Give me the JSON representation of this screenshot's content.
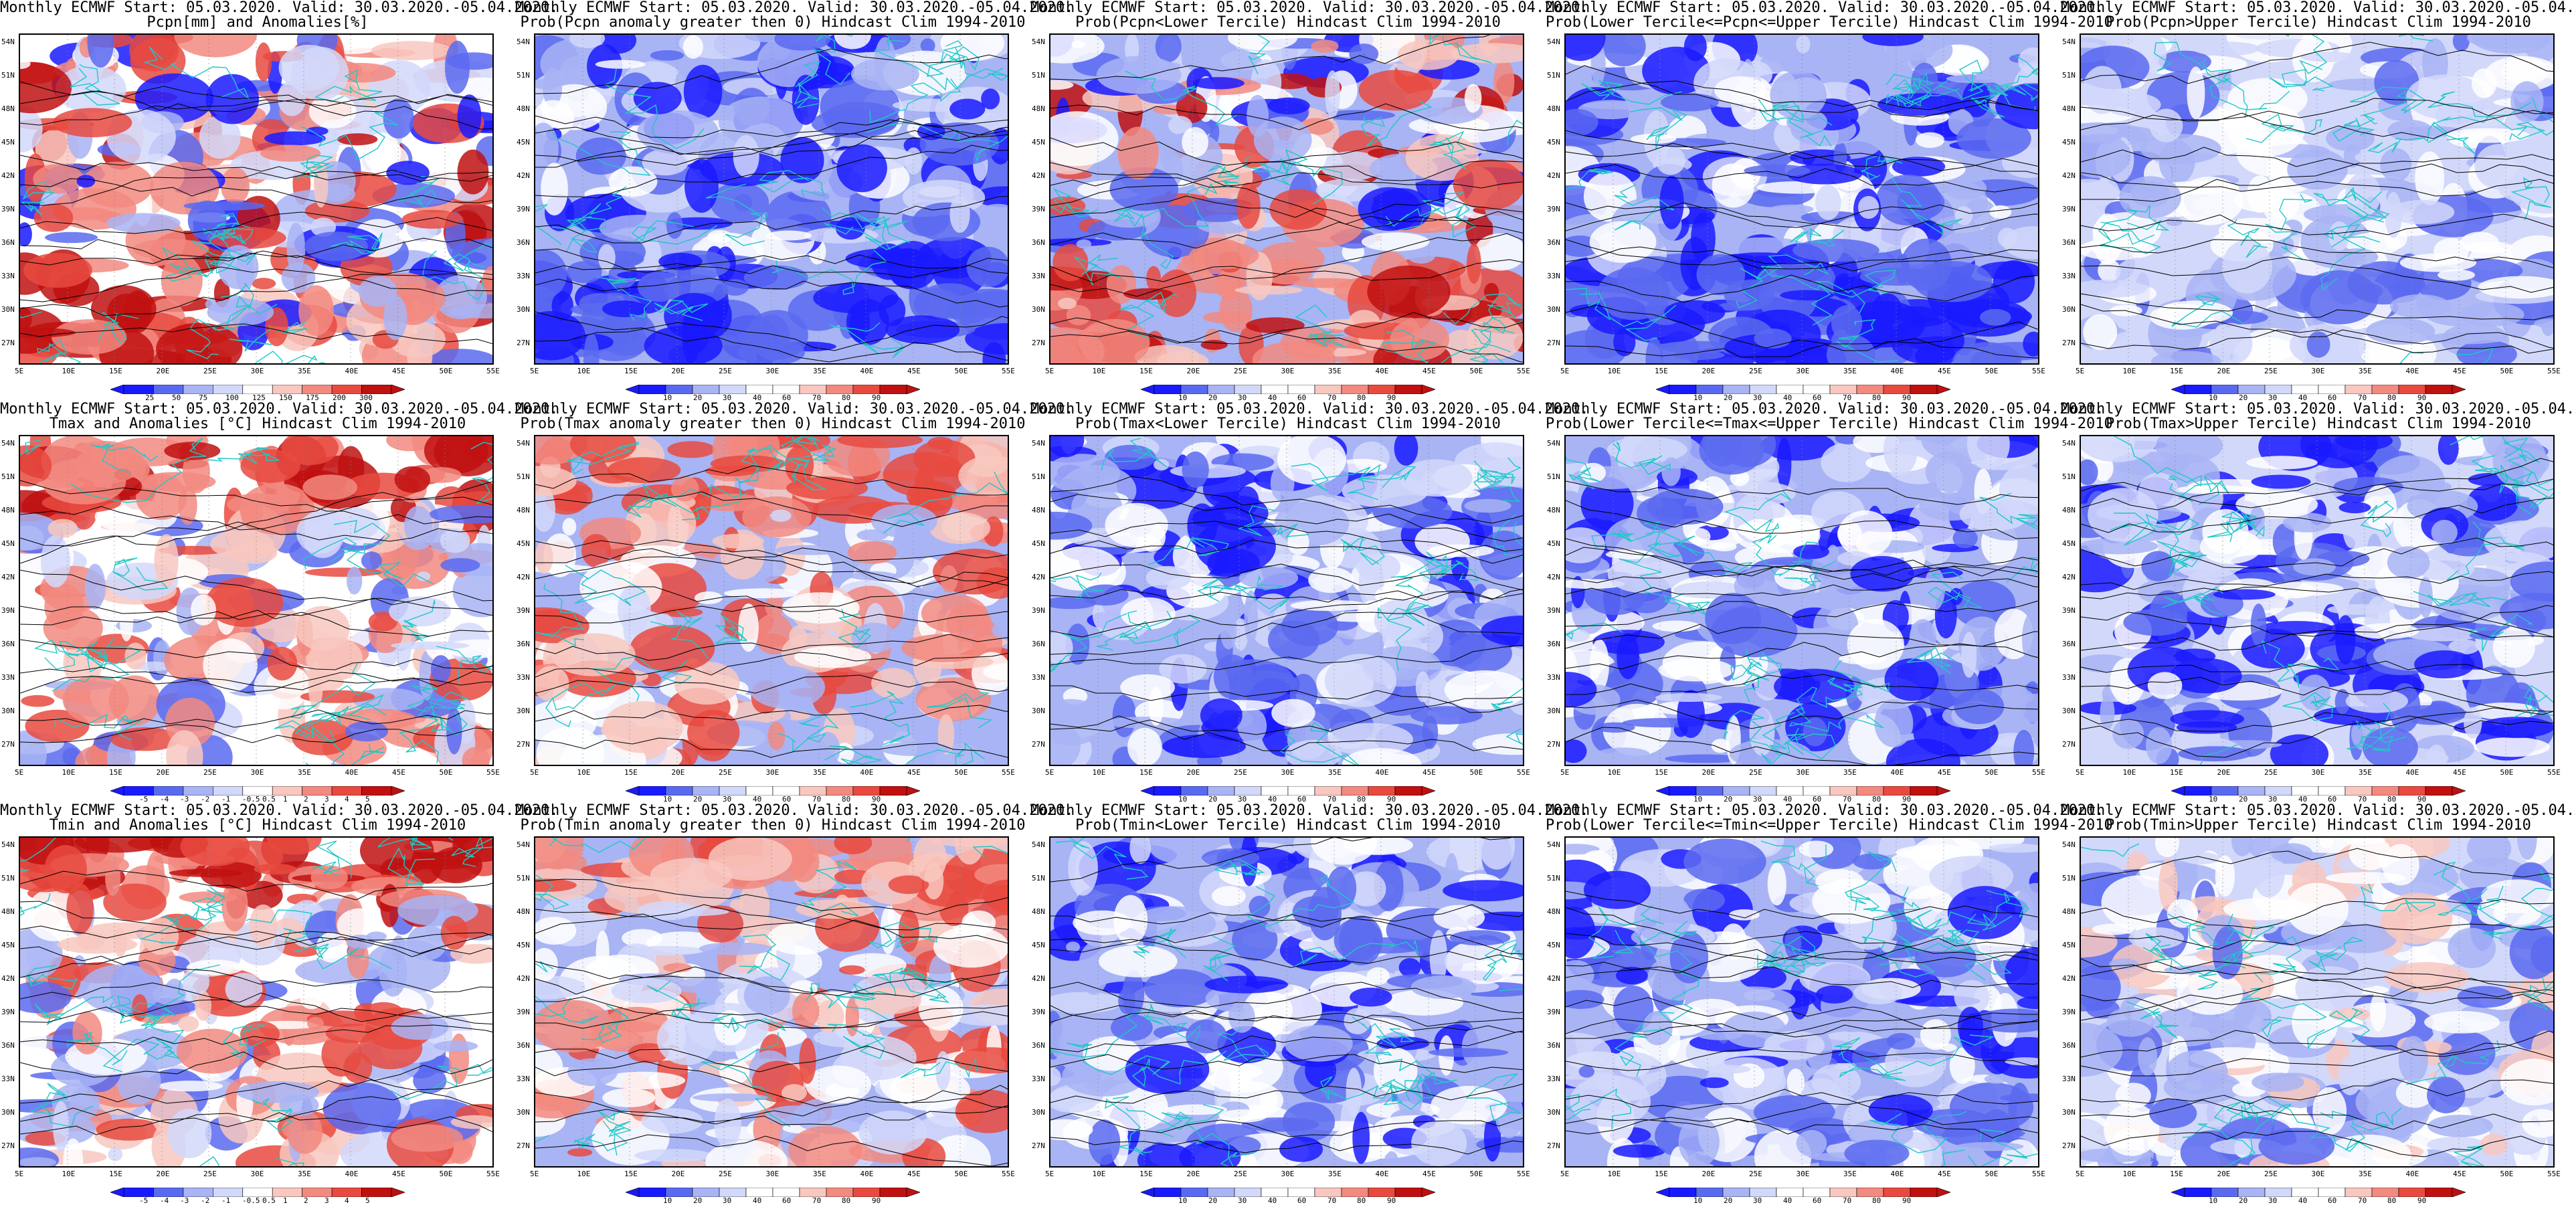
{
  "header_prefix": "Monthly ECMWF Start: 05.03.2020. Valid: 30.03.2020.-05.04.2020.",
  "panels": [
    {
      "subtitle": "Pcpn[mm] and Anomalies[%]",
      "scheme": "anom_pcpn",
      "colorbar_labels": [
        "25",
        "50",
        "75",
        "100",
        "125",
        "150",
        "175",
        "200",
        "300"
      ]
    },
    {
      "subtitle": "Prob(Pcpn anomaly greater then 0) Hindcast Clim 1994-2010",
      "scheme": "prob",
      "colorbar_labels": [
        "10",
        "20",
        "30",
        "40",
        "60",
        "70",
        "80",
        "90"
      ]
    },
    {
      "subtitle": "Prob(Pcpn<Lower Tercile) Hindcast Clim 1994-2010",
      "scheme": "prob",
      "colorbar_labels": [
        "10",
        "20",
        "30",
        "40",
        "60",
        "70",
        "80",
        "90"
      ]
    },
    {
      "subtitle": "Prob(Lower Tercile<=Pcpn<=Upper Tercile) Hindcast Clim 1994-2010",
      "scheme": "prob",
      "colorbar_labels": [
        "10",
        "20",
        "30",
        "40",
        "60",
        "70",
        "80",
        "90"
      ]
    },
    {
      "subtitle": "Prob(Pcpn>Upper Tercile) Hindcast Clim 1994-2010",
      "scheme": "prob",
      "colorbar_labels": [
        "10",
        "20",
        "30",
        "40",
        "60",
        "70",
        "80",
        "90"
      ]
    },
    {
      "subtitle": "Tmax and Anomalies [°C] Hindcast Clim 1994-2010",
      "scheme": "anom_temp",
      "colorbar_labels": [
        "-5",
        "-4",
        "-3",
        "-2",
        "-1",
        "-0.5",
        "0.5",
        "1",
        "2",
        "3",
        "4",
        "5"
      ]
    },
    {
      "subtitle": "Prob(Tmax anomaly greater then 0) Hindcast Clim 1994-2010",
      "scheme": "prob",
      "colorbar_labels": [
        "10",
        "20",
        "30",
        "40",
        "60",
        "70",
        "80",
        "90"
      ]
    },
    {
      "subtitle": "Prob(Tmax<Lower Tercile) Hindcast Clim 1994-2010",
      "scheme": "prob",
      "colorbar_labels": [
        "10",
        "20",
        "30",
        "40",
        "60",
        "70",
        "80",
        "90"
      ]
    },
    {
      "subtitle": "Prob(Lower Tercile<=Tmax<=Upper Tercile) Hindcast Clim 1994-2010",
      "scheme": "prob",
      "colorbar_labels": [
        "10",
        "20",
        "30",
        "40",
        "60",
        "70",
        "80",
        "90"
      ]
    },
    {
      "subtitle": "Prob(Tmax>Upper Tercile) Hindcast Clim 1994-2010",
      "scheme": "prob",
      "colorbar_labels": [
        "10",
        "20",
        "30",
        "40",
        "60",
        "70",
        "80",
        "90"
      ]
    },
    {
      "subtitle": "Tmin and Anomalies [°C] Hindcast Clim 1994-2010",
      "scheme": "anom_temp",
      "colorbar_labels": [
        "-5",
        "-4",
        "-3",
        "-2",
        "-1",
        "-0.5",
        "0.5",
        "1",
        "2",
        "3",
        "4",
        "5"
      ]
    },
    {
      "subtitle": "Prob(Tmin anomaly greater then 0) Hindcast Clim 1994-2010",
      "scheme": "prob",
      "colorbar_labels": [
        "10",
        "20",
        "30",
        "40",
        "60",
        "70",
        "80",
        "90"
      ]
    },
    {
      "subtitle": "Prob(Tmin<Lower Tercile) Hindcast Clim 1994-2010",
      "scheme": "prob",
      "colorbar_labels": [
        "10",
        "20",
        "30",
        "40",
        "60",
        "70",
        "80",
        "90"
      ]
    },
    {
      "subtitle": "Prob(Lower Tercile<=Tmin<=Upper Tercile) Hindcast Clim 1994-2010",
      "scheme": "prob",
      "colorbar_labels": [
        "10",
        "20",
        "30",
        "40",
        "60",
        "70",
        "80",
        "90"
      ]
    },
    {
      "subtitle": "Prob(Tmin>Upper Tercile) Hindcast Clim 1994-2010",
      "scheme": "prob",
      "colorbar_labels": [
        "10",
        "20",
        "30",
        "40",
        "60",
        "70",
        "80",
        "90"
      ]
    }
  ],
  "lat_labels": [
    "54N",
    "51N",
    "48N",
    "45N",
    "42N",
    "39N",
    "36N",
    "33N",
    "30N",
    "27N"
  ],
  "lon_labels": [
    "5E",
    "10E",
    "15E",
    "20E",
    "25E",
    "30E",
    "35E",
    "40E",
    "45E",
    "50E",
    "55E"
  ],
  "colors": {
    "coast": "#20c8c8",
    "contour": "#000000",
    "deep_blue": "#1a1aff",
    "mid_blue": "#5a6af0",
    "light_blue": "#a8b4f4",
    "pale_blue": "#d2d8fa",
    "pale_red": "#f8c8c0",
    "light_red": "#f28a80",
    "mid_red": "#e84a40",
    "deep_red": "#c01010"
  }
}
